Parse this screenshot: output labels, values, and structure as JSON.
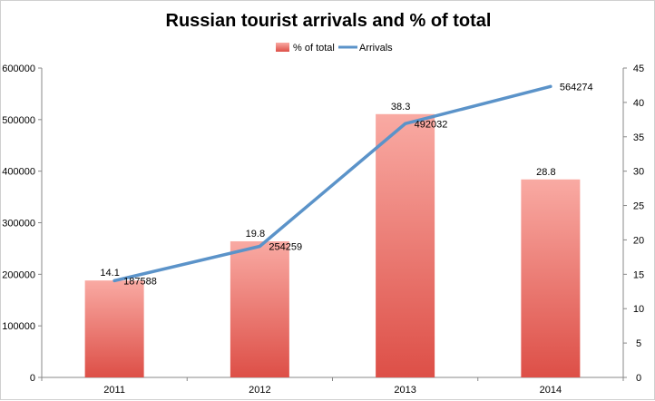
{
  "chart_data": {
    "type": "bar",
    "title": "Russian tourist arrivals and % of total",
    "categories": [
      "2011",
      "2012",
      "2013",
      "2014"
    ],
    "series": [
      {
        "name": "% of total",
        "kind": "bar",
        "axis": "right",
        "values": [
          14.1,
          19.8,
          38.3,
          28.8
        ],
        "labels": [
          "14.1",
          "19.8",
          "38.3",
          "28.8"
        ]
      },
      {
        "name": "Arrivals",
        "kind": "line",
        "axis": "left",
        "values": [
          187588,
          254259,
          492032,
          564274
        ],
        "labels": [
          "187588",
          "254259",
          "492032",
          "564274"
        ]
      }
    ],
    "y_left": {
      "min": 0,
      "max": 600000,
      "ticks": [
        "0",
        "100000",
        "200000",
        "300000",
        "400000",
        "500000",
        "600000"
      ]
    },
    "y_right": {
      "min": 0,
      "max": 45,
      "ticks": [
        "0",
        "5",
        "10",
        "15",
        "20",
        "25",
        "30",
        "35",
        "40",
        "45"
      ]
    },
    "legend_position": "top",
    "grid": false,
    "colors": {
      "bar_top": "#f9aaa3",
      "bar_bottom": "#dd4f47",
      "line": "#5b93c9",
      "axis": "#888888"
    }
  }
}
